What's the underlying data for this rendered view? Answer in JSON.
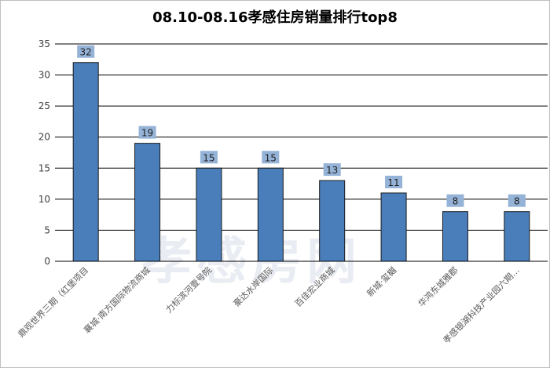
{
  "chart_data": {
    "type": "bar",
    "title": "08.10-08.16孝感住房销量排行top8",
    "categories": [
      "鼎观世界三期（红堡项目",
      "襄城·南方国际物流商城",
      "力标滨河壹号院",
      "豪达水岸国际",
      "百佳宏业商城",
      "新城·玺樾",
      "华鸿东城雅郡",
      "孝感银湖科技产业园六期…"
    ],
    "values": [
      32,
      19,
      15,
      15,
      13,
      11,
      8,
      8
    ],
    "ylim": [
      0,
      35
    ],
    "yticks": [
      0,
      5,
      10,
      15,
      20,
      25,
      30,
      35
    ],
    "grid": true,
    "colors": {
      "bar": "#4a7ebb",
      "bar_border": "#1a1a1a",
      "label_bg": "#95b3d7"
    }
  },
  "watermark": "孝感房网"
}
